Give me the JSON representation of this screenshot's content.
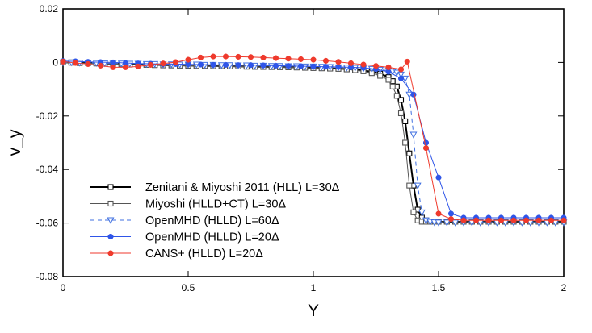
{
  "chart_data": {
    "type": "line",
    "title": "",
    "xlabel": "Y",
    "ylabel": "v_y",
    "xlim": [
      0,
      2
    ],
    "ylim": [
      -0.08,
      0.02
    ],
    "xticks": [
      0,
      0.5,
      1,
      1.5,
      2
    ],
    "xtick_labels": [
      "0",
      "0.5",
      "1",
      "1.5",
      "2"
    ],
    "yticks": [
      0.02,
      0,
      -0.02,
      -0.04,
      -0.06,
      -0.08
    ],
    "ytick_labels": [
      "0.02",
      "0",
      "-0.02",
      "-0.04",
      "-0.06",
      "-0.08"
    ],
    "grid": false,
    "legend_position": "lower-left",
    "series": [
      {
        "name": "Zenitani & Miyoshi 2011 (HLL) L=30Δ",
        "color": "#000000",
        "marker": "square",
        "line": "solid",
        "width": 2,
        "x": [
          0,
          0.0333,
          0.0667,
          0.1,
          0.1333,
          0.1667,
          0.2,
          0.2333,
          0.2667,
          0.3,
          0.3333,
          0.3667,
          0.4,
          0.4333,
          0.4667,
          0.5,
          0.5333,
          0.5667,
          0.6,
          0.6333,
          0.6667,
          0.7,
          0.7333,
          0.7667,
          0.8,
          0.8333,
          0.8667,
          0.9,
          0.9333,
          0.9667,
          1,
          1.0333,
          1.0667,
          1.1,
          1.1333,
          1.1667,
          1.2,
          1.2333,
          1.2667,
          1.3,
          1.3167,
          1.3333,
          1.35,
          1.3667,
          1.3833,
          1.4,
          1.4167,
          1.4333,
          1.45,
          1.4667,
          1.5,
          1.5333,
          1.5667,
          1.6,
          1.6333,
          1.6667,
          1.7,
          1.7333,
          1.7667,
          1.8,
          1.8333,
          1.8667,
          1.9,
          1.9333,
          1.9667,
          2
        ],
        "y": [
          0,
          0,
          -0.0002,
          -0.0002,
          -0.0003,
          -0.0004,
          -0.0005,
          -0.0006,
          -0.0007,
          -0.0008,
          -0.0008,
          -0.0009,
          -0.001,
          -0.0011,
          -0.0011,
          -0.0012,
          -0.0012,
          -0.0013,
          -0.0013,
          -0.0014,
          -0.0014,
          -0.0015,
          -0.0015,
          -0.0016,
          -0.0016,
          -0.0017,
          -0.0017,
          -0.0018,
          -0.0018,
          -0.0019,
          -0.002,
          -0.0021,
          -0.0022,
          -0.0023,
          -0.0025,
          -0.0027,
          -0.003,
          -0.0035,
          -0.0042,
          -0.0055,
          -0.007,
          -0.009,
          -0.014,
          -0.022,
          -0.034,
          -0.046,
          -0.055,
          -0.058,
          -0.059,
          -0.0595,
          -0.0595,
          -0.0595,
          -0.0595,
          -0.0595,
          -0.0595,
          -0.0595,
          -0.0595,
          -0.0595,
          -0.0595,
          -0.0595,
          -0.0595,
          -0.0595,
          -0.0595,
          -0.0595,
          -0.0595,
          -0.0595
        ]
      },
      {
        "name": "Miyoshi (HLLD+CT) L=30Δ",
        "color": "#555555",
        "marker": "square",
        "line": "solid",
        "width": 1,
        "x": [
          0,
          0.0333,
          0.0667,
          0.1,
          0.1333,
          0.1667,
          0.2,
          0.2333,
          0.2667,
          0.3,
          0.3333,
          0.3667,
          0.4,
          0.4333,
          0.4667,
          0.5,
          0.5333,
          0.5667,
          0.6,
          0.6333,
          0.6667,
          0.7,
          0.7333,
          0.7667,
          0.8,
          0.8333,
          0.8667,
          0.9,
          0.9333,
          0.9667,
          1,
          1.0333,
          1.0667,
          1.1,
          1.1333,
          1.1667,
          1.2,
          1.2333,
          1.2667,
          1.3,
          1.3167,
          1.3333,
          1.35,
          1.3667,
          1.3833,
          1.4,
          1.4167,
          1.4333,
          1.45,
          1.4667,
          1.5,
          1.5333,
          1.5667,
          1.6,
          1.6333,
          1.6667,
          1.7,
          1.7333,
          1.7667,
          1.8,
          1.8333,
          1.8667,
          1.9,
          1.9333,
          1.9667,
          2
        ],
        "y": [
          0,
          -0.0001,
          -0.0002,
          -0.0003,
          -0.0004,
          -0.0005,
          -0.0006,
          -0.0007,
          -0.0008,
          -0.0008,
          -0.0009,
          -0.001,
          -0.0011,
          -0.0011,
          -0.0012,
          -0.0012,
          -0.0013,
          -0.0013,
          -0.0014,
          -0.0014,
          -0.0015,
          -0.0015,
          -0.0016,
          -0.0016,
          -0.0017,
          -0.0017,
          -0.0018,
          -0.0018,
          -0.0019,
          -0.002,
          -0.0021,
          -0.0022,
          -0.0023,
          -0.0024,
          -0.0026,
          -0.0029,
          -0.0033,
          -0.004,
          -0.005,
          -0.0065,
          -0.009,
          -0.0125,
          -0.019,
          -0.03,
          -0.046,
          -0.056,
          -0.059,
          -0.0595,
          -0.0595,
          -0.0595,
          -0.0595,
          -0.0595,
          -0.0595,
          -0.0595,
          -0.0595,
          -0.0595,
          -0.0595,
          -0.0595,
          -0.0595,
          -0.0595,
          -0.0595,
          -0.0595,
          -0.0595,
          -0.0595,
          -0.0595,
          -0.0595
        ]
      },
      {
        "name": "OpenMHD (HLLD) L=60Δ",
        "color": "#3f6fe0",
        "marker": "triangle-down",
        "line": "dashed",
        "width": 1,
        "x": [
          0,
          0.0333,
          0.0667,
          0.1,
          0.1333,
          0.1667,
          0.2,
          0.2333,
          0.2667,
          0.3,
          0.3333,
          0.3667,
          0.4,
          0.4333,
          0.4667,
          0.5,
          0.5333,
          0.5667,
          0.6,
          0.6333,
          0.6667,
          0.7,
          0.7333,
          0.7667,
          0.8,
          0.8333,
          0.8667,
          0.9,
          0.9333,
          0.9667,
          1,
          1.0333,
          1.0667,
          1.1,
          1.1333,
          1.1667,
          1.2,
          1.2333,
          1.2667,
          1.3,
          1.3167,
          1.3333,
          1.35,
          1.3667,
          1.3833,
          1.4,
          1.4167,
          1.4333,
          1.45,
          1.4667,
          1.4833,
          1.5,
          1.5333,
          1.5667,
          1.6,
          1.6333,
          1.6667,
          1.7,
          1.7333,
          1.7667,
          1.8,
          1.8333,
          1.8667,
          1.9,
          1.9333,
          1.9667,
          2
        ],
        "y": [
          0,
          0,
          -0.0001,
          -0.0002,
          -0.0002,
          -0.0003,
          -0.0004,
          -0.0004,
          -0.0005,
          -0.0005,
          -0.0006,
          -0.0006,
          -0.0007,
          -0.0007,
          -0.0008,
          -0.0008,
          -0.0008,
          -0.0009,
          -0.0009,
          -0.001,
          -0.001,
          -0.0011,
          -0.0011,
          -0.0012,
          -0.0012,
          -0.0013,
          -0.0013,
          -0.0014,
          -0.0014,
          -0.0015,
          -0.0015,
          -0.0016,
          -0.0017,
          -0.0018,
          -0.0019,
          -0.002,
          -0.0022,
          -0.0024,
          -0.0027,
          -0.0031,
          -0.0034,
          -0.0038,
          -0.0045,
          -0.006,
          -0.012,
          -0.027,
          -0.046,
          -0.056,
          -0.059,
          -0.0595,
          -0.0597,
          -0.0598,
          -0.0598,
          -0.0598,
          -0.0598,
          -0.0598,
          -0.0598,
          -0.0598,
          -0.0598,
          -0.0598,
          -0.0598,
          -0.0598,
          -0.0598,
          -0.0598,
          -0.0598,
          -0.0598,
          -0.0598
        ]
      },
      {
        "name": "OpenMHD (HLLD) L=20Δ",
        "color": "#2f55e8",
        "marker": "circle",
        "line": "solid",
        "width": 1,
        "x": [
          0,
          0.05,
          0.1,
          0.15,
          0.2,
          0.25,
          0.3,
          0.35,
          0.4,
          0.45,
          0.5,
          0.55,
          0.6,
          0.65,
          0.7,
          0.75,
          0.8,
          0.85,
          0.9,
          0.95,
          1,
          1.05,
          1.1,
          1.15,
          1.2,
          1.25,
          1.3,
          1.35,
          1.4,
          1.45,
          1.5,
          1.55,
          1.6,
          1.65,
          1.7,
          1.75,
          1.8,
          1.85,
          1.9,
          1.95,
          2
        ],
        "y": [
          0.0005,
          0.0004,
          0.0002,
          0.0001,
          0,
          -0.0002,
          -0.0004,
          -0.0005,
          -0.0006,
          -0.0006,
          -0.0007,
          -0.0008,
          -0.0009,
          -0.0009,
          -0.001,
          -0.001,
          -0.0011,
          -0.0012,
          -0.0013,
          -0.0014,
          -0.0015,
          -0.0016,
          -0.0017,
          -0.0018,
          -0.002,
          -0.0025,
          -0.0035,
          -0.006,
          -0.012,
          -0.03,
          -0.043,
          -0.0565,
          -0.058,
          -0.058,
          -0.058,
          -0.058,
          -0.058,
          -0.058,
          -0.058,
          -0.058,
          -0.058
        ]
      },
      {
        "name": "CANS+ (HLLD) L=20Δ",
        "color": "#ef3a2c",
        "marker": "circle",
        "line": "solid",
        "width": 1,
        "x": [
          0,
          0.05,
          0.1,
          0.15,
          0.2,
          0.25,
          0.3,
          0.35,
          0.4,
          0.45,
          0.5,
          0.55,
          0.6,
          0.65,
          0.7,
          0.75,
          0.8,
          0.85,
          0.9,
          0.95,
          1,
          1.05,
          1.1,
          1.15,
          1.2,
          1.25,
          1.3,
          1.35,
          1.375,
          1.45,
          1.5,
          1.55,
          1.6,
          1.65,
          1.7,
          1.75,
          1.8,
          1.85,
          1.9,
          1.95,
          2
        ],
        "y": [
          0.0003,
          -0.0002,
          -0.0006,
          -0.0012,
          -0.0018,
          -0.0018,
          -0.0015,
          -0.0009,
          -0.0004,
          0.0001,
          0.001,
          0.0018,
          0.0022,
          0.0022,
          0.0021,
          0.002,
          0.0018,
          0.0016,
          0.0014,
          0.0012,
          0.001,
          0.0006,
          0.0002,
          -0.0003,
          -0.0008,
          -0.0013,
          -0.0018,
          -0.0026,
          0.0003,
          -0.032,
          -0.0565,
          -0.0585,
          -0.059,
          -0.059,
          -0.059,
          -0.059,
          -0.059,
          -0.059,
          -0.059,
          -0.059,
          -0.059
        ]
      }
    ]
  }
}
